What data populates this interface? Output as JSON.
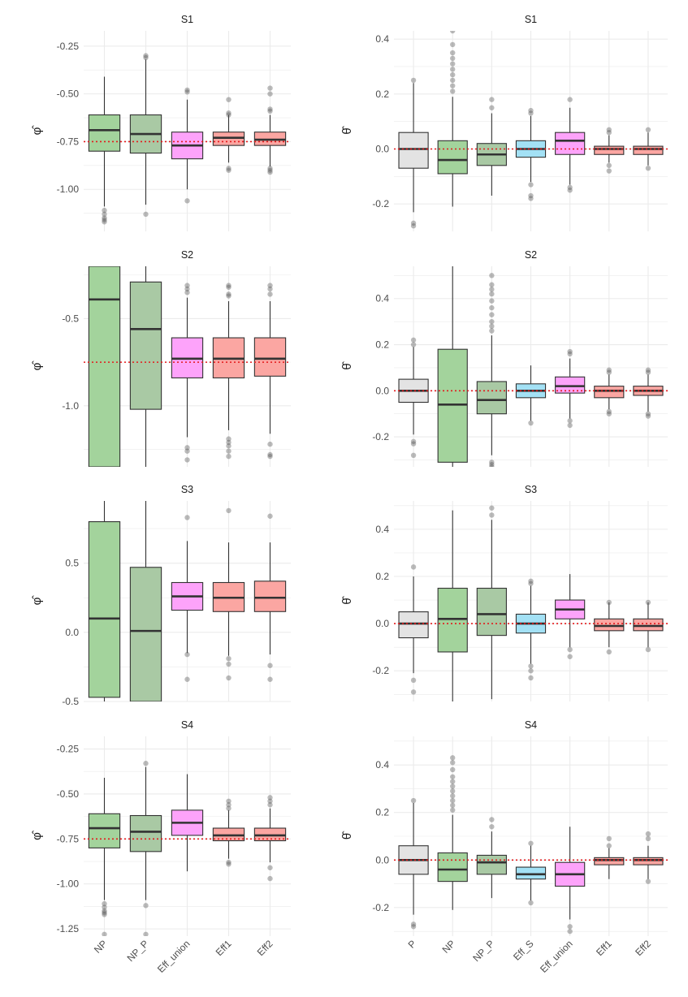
{
  "colors": {
    "P": "#e3e3e3",
    "NP": "#a3d39c",
    "NP_P": "#a9c9a4",
    "Eff_S": "#a3e1f5",
    "Eff_union": "#fda3fa",
    "Eff1": "#fba6a2",
    "Eff2": "#fba6a2",
    "ref_line": "#e31a1c",
    "grid": "#ebebeb"
  },
  "chart_data": [
    {
      "type": "boxplot",
      "title": "S1",
      "ylabel": "φ̂",
      "ylim": [
        -1.22,
        -0.17
      ],
      "ref": -0.75,
      "yticks": [
        -1.0,
        -0.75,
        -0.5,
        -0.25
      ],
      "ytick_labels": [
        "-1.00",
        "-0.75",
        "-0.50",
        "-0.25"
      ],
      "categories": [
        "NP",
        "NP_P",
        "Eff_union",
        "Eff1",
        "Eff2"
      ],
      "boxes": [
        {
          "name": "NP",
          "q1": -0.8,
          "med": -0.69,
          "q3": -0.61,
          "wlo": -1.09,
          "whi": -0.41,
          "out": [
            -1.11,
            -1.13,
            -1.15,
            -1.16,
            -1.17
          ]
        },
        {
          "name": "NP_P",
          "q1": -0.81,
          "med": -0.71,
          "q3": -0.61,
          "wlo": -1.08,
          "whi": -0.32,
          "out": [
            -1.13,
            -0.3,
            -0.31
          ]
        },
        {
          "name": "Eff_union",
          "q1": -0.84,
          "med": -0.77,
          "q3": -0.7,
          "wlo": -1.0,
          "whi": -0.53,
          "out": [
            -1.06,
            -0.48,
            -0.49
          ]
        },
        {
          "name": "Eff1",
          "q1": -0.77,
          "med": -0.73,
          "q3": -0.7,
          "wlo": -0.86,
          "whi": -0.61,
          "out": [
            -0.89,
            -0.9,
            -0.6,
            -0.61,
            -0.53
          ]
        },
        {
          "name": "Eff2",
          "q1": -0.77,
          "med": -0.74,
          "q3": -0.7,
          "wlo": -0.88,
          "whi": -0.61,
          "out": [
            -0.9,
            -0.91,
            -0.89,
            -0.59,
            -0.58,
            -0.5,
            -0.47
          ]
        }
      ]
    },
    {
      "type": "boxplot",
      "title": "S1",
      "ylabel": "θ̂",
      "ylim": [
        -0.3,
        0.43
      ],
      "ref": 0.0,
      "yticks": [
        -0.2,
        0.0,
        0.2,
        0.4
      ],
      "ytick_labels": [
        "-0.2",
        "0.0",
        "0.2",
        "0.4"
      ],
      "categories": [
        "P",
        "NP",
        "NP_P",
        "Eff_S",
        "Eff_union",
        "Eff1",
        "Eff2"
      ],
      "boxes": [
        {
          "name": "P",
          "q1": -0.07,
          "med": 0.0,
          "q3": 0.06,
          "wlo": -0.23,
          "whi": 0.24,
          "out": [
            -0.27,
            -0.28,
            0.25
          ]
        },
        {
          "name": "NP",
          "q1": -0.09,
          "med": -0.04,
          "q3": 0.03,
          "wlo": -0.21,
          "whi": 0.19,
          "out": [
            0.21,
            0.23,
            0.25,
            0.27,
            0.29,
            0.31,
            0.33,
            0.35,
            0.38,
            0.43
          ]
        },
        {
          "name": "NP_P",
          "q1": -0.06,
          "med": -0.02,
          "q3": 0.02,
          "wlo": -0.17,
          "whi": 0.13,
          "out": [
            0.15,
            0.18
          ]
        },
        {
          "name": "Eff_S",
          "q1": -0.03,
          "med": 0.0,
          "q3": 0.03,
          "wlo": -0.12,
          "whi": 0.12,
          "out": [
            -0.13,
            -0.17,
            -0.18,
            0.13,
            0.14
          ]
        },
        {
          "name": "Eff_union",
          "q1": -0.02,
          "med": 0.03,
          "q3": 0.06,
          "wlo": -0.13,
          "whi": 0.15,
          "out": [
            -0.14,
            -0.15,
            0.18
          ]
        },
        {
          "name": "Eff1",
          "q1": -0.02,
          "med": 0.0,
          "q3": 0.01,
          "wlo": -0.05,
          "whi": 0.05,
          "out": [
            -0.06,
            -0.08,
            0.06,
            0.07
          ]
        },
        {
          "name": "Eff2",
          "q1": -0.02,
          "med": 0.0,
          "q3": 0.01,
          "wlo": -0.06,
          "whi": 0.06,
          "out": [
            -0.07,
            0.07
          ]
        }
      ]
    },
    {
      "type": "boxplot",
      "title": "S2",
      "ylabel": "φ̂",
      "ylim": [
        -1.35,
        -0.2
      ],
      "ref": -0.75,
      "yticks": [
        -1.0,
        -0.5
      ],
      "ytick_labels": [
        "-1.0",
        "-0.5"
      ],
      "categories": [
        "NP",
        "NP_P",
        "Eff_union",
        "Eff1",
        "Eff2"
      ],
      "boxes": [
        {
          "name": "NP",
          "q1": -1.35,
          "med": -0.39,
          "q3": -0.2,
          "wlo": -1.35,
          "whi": -0.2,
          "out": []
        },
        {
          "name": "NP_P",
          "q1": -1.02,
          "med": -0.56,
          "q3": -0.29,
          "wlo": -1.35,
          "whi": -0.2,
          "out": []
        },
        {
          "name": "Eff_union",
          "q1": -0.84,
          "med": -0.73,
          "q3": -0.61,
          "wlo": -1.18,
          "whi": -0.38,
          "out": [
            -1.24,
            -1.26,
            -1.31,
            -0.31,
            -0.33,
            -0.35
          ]
        },
        {
          "name": "Eff1",
          "q1": -0.84,
          "med": -0.73,
          "q3": -0.61,
          "wlo": -1.14,
          "whi": -0.4,
          "out": [
            -1.19,
            -1.21,
            -1.23,
            -1.26,
            -1.29,
            -0.31,
            -0.32,
            -0.36,
            -0.37
          ]
        },
        {
          "name": "Eff2",
          "q1": -0.83,
          "med": -0.73,
          "q3": -0.61,
          "wlo": -1.16,
          "whi": -0.4,
          "out": [
            -1.22,
            -1.28,
            -1.29,
            -0.31,
            -0.33,
            -0.36
          ]
        }
      ]
    },
    {
      "type": "boxplot",
      "title": "S2",
      "ylabel": "θ̂",
      "ylim": [
        -0.33,
        0.54
      ],
      "ref": 0.0,
      "yticks": [
        -0.2,
        0.0,
        0.2,
        0.4
      ],
      "ytick_labels": [
        "-0.2",
        "0.0",
        "0.2",
        "0.4"
      ],
      "categories": [
        "P",
        "NP",
        "NP_P",
        "Eff_S",
        "Eff_union",
        "Eff1",
        "Eff2"
      ],
      "boxes": [
        {
          "name": "P",
          "q1": -0.05,
          "med": 0.0,
          "q3": 0.05,
          "wlo": -0.19,
          "whi": 0.19,
          "out": [
            -0.22,
            -0.23,
            -0.28,
            0.2,
            0.22
          ]
        },
        {
          "name": "NP",
          "q1": -0.31,
          "med": -0.06,
          "q3": 0.18,
          "wlo": -0.33,
          "whi": 0.54,
          "out": []
        },
        {
          "name": "NP_P",
          "q1": -0.1,
          "med": -0.04,
          "q3": 0.04,
          "wlo": -0.28,
          "whi": 0.24,
          "out": [
            -0.31,
            -0.32,
            -0.33,
            0.26,
            0.28,
            0.3,
            0.33,
            0.36,
            0.39,
            0.42,
            0.44,
            0.46,
            0.5
          ]
        },
        {
          "name": "Eff_S",
          "q1": -0.03,
          "med": 0.0,
          "q3": 0.03,
          "wlo": -0.13,
          "whi": 0.11,
          "out": [
            -0.14
          ]
        },
        {
          "name": "Eff_union",
          "q1": -0.01,
          "med": 0.02,
          "q3": 0.06,
          "wlo": -0.12,
          "whi": 0.14,
          "out": [
            -0.13,
            -0.15,
            0.16,
            0.17
          ]
        },
        {
          "name": "Eff1",
          "q1": -0.03,
          "med": 0.0,
          "q3": 0.02,
          "wlo": -0.08,
          "whi": 0.07,
          "out": [
            -0.09,
            -0.1,
            0.08,
            0.09
          ]
        },
        {
          "name": "Eff2",
          "q1": -0.02,
          "med": 0.0,
          "q3": 0.02,
          "wlo": -0.09,
          "whi": 0.07,
          "out": [
            -0.1,
            -0.11,
            0.08,
            0.09
          ]
        }
      ]
    },
    {
      "type": "boxplot",
      "title": "S3",
      "ylabel": "φ̂",
      "ylim": [
        -0.5,
        0.95
      ],
      "ref": null,
      "yticks": [
        -0.5,
        0.0,
        0.5
      ],
      "ytick_labels": [
        "-0.5",
        "0.0",
        "0.5"
      ],
      "categories": [
        "NP",
        "NP_P",
        "Eff_union",
        "Eff1",
        "Eff2"
      ],
      "boxes": [
        {
          "name": "NP",
          "q1": -0.47,
          "med": 0.1,
          "q3": 0.8,
          "wlo": -0.5,
          "whi": 0.95,
          "out": []
        },
        {
          "name": "NP_P",
          "q1": -0.5,
          "med": 0.01,
          "q3": 0.47,
          "wlo": -0.5,
          "whi": 0.95,
          "out": []
        },
        {
          "name": "Eff_union",
          "q1": 0.16,
          "med": 0.26,
          "q3": 0.36,
          "wlo": -0.15,
          "whi": 0.66,
          "out": [
            -0.16,
            -0.34,
            0.83
          ]
        },
        {
          "name": "Eff1",
          "q1": 0.15,
          "med": 0.25,
          "q3": 0.36,
          "wlo": -0.17,
          "whi": 0.65,
          "out": [
            -0.19,
            -0.23,
            -0.33,
            0.88
          ]
        },
        {
          "name": "Eff2",
          "q1": 0.15,
          "med": 0.25,
          "q3": 0.37,
          "wlo": -0.16,
          "whi": 0.65,
          "out": [
            -0.24,
            -0.34,
            0.84
          ]
        }
      ]
    },
    {
      "type": "boxplot",
      "title": "S3",
      "ylabel": "θ̂",
      "ylim": [
        -0.33,
        0.52
      ],
      "ref": 0.0,
      "yticks": [
        -0.2,
        0.0,
        0.2,
        0.4
      ],
      "ytick_labels": [
        "-0.2",
        "0.0",
        "0.2",
        "0.4"
      ],
      "categories": [
        "P",
        "NP",
        "NP_P",
        "Eff_S",
        "Eff_union",
        "Eff1",
        "Eff2"
      ],
      "boxes": [
        {
          "name": "P",
          "q1": -0.06,
          "med": 0.0,
          "q3": 0.05,
          "wlo": -0.21,
          "whi": 0.2,
          "out": [
            -0.24,
            -0.29,
            0.24
          ]
        },
        {
          "name": "NP",
          "q1": -0.12,
          "med": 0.02,
          "q3": 0.15,
          "wlo": -0.33,
          "whi": 0.48,
          "out": []
        },
        {
          "name": "NP_P",
          "q1": -0.05,
          "med": 0.04,
          "q3": 0.15,
          "wlo": -0.32,
          "whi": 0.44,
          "out": [
            0.46,
            0.49
          ]
        },
        {
          "name": "Eff_S",
          "q1": -0.04,
          "med": 0.0,
          "q3": 0.04,
          "wlo": -0.17,
          "whi": 0.16,
          "out": [
            -0.18,
            -0.2,
            -0.23,
            0.17,
            0.18
          ]
        },
        {
          "name": "Eff_union",
          "q1": 0.02,
          "med": 0.06,
          "q3": 0.1,
          "wlo": -0.1,
          "whi": 0.21,
          "out": [
            -0.11,
            -0.14
          ]
        },
        {
          "name": "Eff1",
          "q1": -0.03,
          "med": -0.01,
          "q3": 0.02,
          "wlo": -0.1,
          "whi": 0.09,
          "out": [
            -0.12,
            0.09
          ]
        },
        {
          "name": "Eff2",
          "q1": -0.03,
          "med": -0.01,
          "q3": 0.02,
          "wlo": -0.1,
          "whi": 0.09,
          "out": [
            -0.11,
            0.09
          ]
        }
      ]
    },
    {
      "type": "boxplot",
      "title": "S4",
      "ylabel": "φ̂",
      "ylim": [
        -1.29,
        -0.18
      ],
      "ref": -0.75,
      "yticks": [
        -1.25,
        -1.0,
        -0.75,
        -0.5,
        -0.25
      ],
      "ytick_labels": [
        "-1.25",
        "-1.00",
        "-0.75",
        "-0.50",
        "-0.25"
      ],
      "categories": [
        "NP",
        "NP_P",
        "Eff_union",
        "Eff1",
        "Eff2"
      ],
      "boxes": [
        {
          "name": "NP",
          "q1": -0.8,
          "med": -0.69,
          "q3": -0.61,
          "wlo": -1.09,
          "whi": -0.41,
          "out": [
            -1.11,
            -1.13,
            -1.15,
            -1.16,
            -1.17,
            -1.28
          ]
        },
        {
          "name": "NP_P",
          "q1": -0.82,
          "med": -0.71,
          "q3": -0.62,
          "wlo": -1.09,
          "whi": -0.35,
          "out": [
            -1.12,
            -1.28,
            -0.33
          ]
        },
        {
          "name": "Eff_union",
          "q1": -0.73,
          "med": -0.66,
          "q3": -0.59,
          "wlo": -0.93,
          "whi": -0.39,
          "out": []
        },
        {
          "name": "Eff1",
          "q1": -0.76,
          "med": -0.73,
          "q3": -0.69,
          "wlo": -0.86,
          "whi": -0.59,
          "out": [
            -0.88,
            -0.89,
            -0.58,
            -0.56,
            -0.54
          ]
        },
        {
          "name": "Eff2",
          "q1": -0.76,
          "med": -0.73,
          "q3": -0.69,
          "wlo": -0.88,
          "whi": -0.58,
          "out": [
            -0.91,
            -0.97,
            -0.56,
            -0.54,
            -0.52
          ]
        }
      ]
    },
    {
      "type": "boxplot",
      "title": "S4",
      "ylabel": "θ̂",
      "ylim": [
        -0.32,
        0.52
      ],
      "ref": 0.0,
      "yticks": [
        -0.2,
        0.0,
        0.2,
        0.4
      ],
      "ytick_labels": [
        "-0.2",
        "0.0",
        "0.2",
        "0.4"
      ],
      "categories": [
        "P",
        "NP",
        "NP_P",
        "Eff_S",
        "Eff_union",
        "Eff1",
        "Eff2"
      ],
      "boxes": [
        {
          "name": "P",
          "q1": -0.06,
          "med": 0.0,
          "q3": 0.06,
          "wlo": -0.23,
          "whi": 0.24,
          "out": [
            -0.27,
            -0.28,
            0.25
          ]
        },
        {
          "name": "NP",
          "q1": -0.09,
          "med": -0.04,
          "q3": 0.03,
          "wlo": -0.21,
          "whi": 0.19,
          "out": [
            0.21,
            0.23,
            0.25,
            0.27,
            0.29,
            0.31,
            0.33,
            0.35,
            0.38,
            0.41,
            0.43
          ]
        },
        {
          "name": "NP_P",
          "q1": -0.06,
          "med": -0.01,
          "q3": 0.02,
          "wlo": -0.16,
          "whi": 0.12,
          "out": [
            0.14,
            0.17
          ]
        },
        {
          "name": "Eff_S",
          "q1": -0.08,
          "med": -0.06,
          "q3": -0.03,
          "wlo": -0.17,
          "whi": 0.06,
          "out": [
            -0.18,
            0.07
          ]
        },
        {
          "name": "Eff_union",
          "q1": -0.11,
          "med": -0.06,
          "q3": -0.01,
          "wlo": -0.25,
          "whi": 0.14,
          "out": [
            -0.28,
            -0.3
          ]
        },
        {
          "name": "Eff1",
          "q1": -0.02,
          "med": 0.0,
          "q3": 0.01,
          "wlo": -0.08,
          "whi": 0.05,
          "out": [
            0.06,
            0.09
          ]
        },
        {
          "name": "Eff2",
          "q1": -0.02,
          "med": 0.0,
          "q3": 0.01,
          "wlo": -0.08,
          "whi": 0.06,
          "out": [
            -0.09,
            0.09,
            0.11
          ]
        }
      ]
    }
  ]
}
